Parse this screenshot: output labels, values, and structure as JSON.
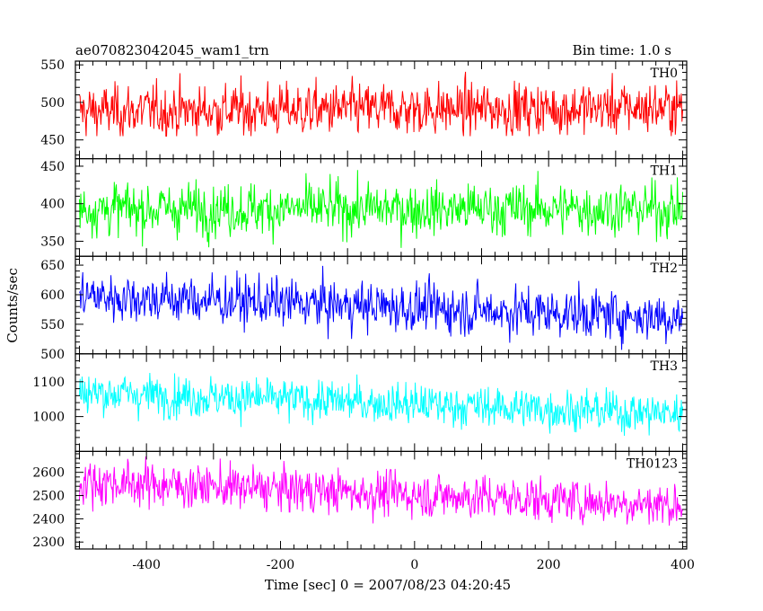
{
  "chart_data": {
    "type": "line",
    "title_left": "ae070823042045_wam1_trn",
    "title_right": "Bin time: 1.0 s",
    "xlabel": "Time [sec] 0 = 2007/08/23 04:20:45",
    "ylabel": "Counts/sec",
    "xlim": [
      -506,
      406
    ],
    "x_ticks": [
      -400,
      -200,
      0,
      200,
      400
    ],
    "bin_time_s": 1.0,
    "series": [
      {
        "name": "TH0",
        "color": "#ff0000",
        "ylim": [
          425,
          555
        ],
        "y_ticks": [
          450,
          500,
          550
        ],
        "mean_start": 488,
        "mean_end": 493,
        "noise": 20,
        "clip": [
          455,
          555
        ]
      },
      {
        "name": "TH1",
        "color": "#00ff00",
        "ylim": [
          330,
          460
        ],
        "y_ticks": [
          350,
          400,
          450
        ],
        "mean_start": 393,
        "mean_end": 393,
        "noise": 20,
        "clip": [
          340,
          460
        ]
      },
      {
        "name": "TH2",
        "color": "#0000ff",
        "ylim": [
          500,
          665
        ],
        "y_ticks": [
          500,
          550,
          600,
          650
        ],
        "mean_start": 598,
        "mean_end": 562,
        "noise": 24,
        "clip": [
          505,
          665
        ]
      },
      {
        "name": "TH3",
        "color": "#00ffff",
        "ylim": [
          900,
          1180
        ],
        "y_ticks": [
          1000,
          1100
        ],
        "mean_start": 1070,
        "mean_end": 1008,
        "noise": 34,
        "clip": [
          945,
          1180
        ]
      },
      {
        "name": "TH0123",
        "color": "#ff00ff",
        "ylim": [
          2270,
          2690
        ],
        "y_ticks": [
          2300,
          2400,
          2500,
          2600
        ],
        "mean_start": 2560,
        "mean_end": 2460,
        "noise": 55,
        "clip": [
          2290,
          2690
        ]
      }
    ]
  }
}
